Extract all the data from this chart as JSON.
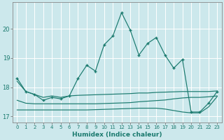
{
  "xlabel": "Humidex (Indice chaleur)",
  "background_color": "#cce8ec",
  "grid_color": "#ffffff",
  "line_color": "#1a7a6e",
  "xlim": [
    -0.5,
    23.5
  ],
  "ylim": [
    16.8,
    20.9
  ],
  "yticks": [
    17,
    18,
    19,
    20
  ],
  "xticks": [
    0,
    1,
    2,
    3,
    4,
    5,
    6,
    7,
    8,
    9,
    10,
    11,
    12,
    13,
    14,
    15,
    16,
    17,
    18,
    19,
    20,
    21,
    22,
    23
  ],
  "series": {
    "main": [
      18.3,
      17.85,
      17.75,
      17.55,
      17.65,
      17.6,
      17.7,
      18.3,
      18.75,
      18.55,
      19.45,
      19.75,
      20.55,
      19.95,
      19.1,
      19.5,
      19.7,
      19.1,
      18.65,
      18.95,
      17.15,
      17.15,
      17.45,
      17.85
    ],
    "upper": [
      18.2,
      17.85,
      17.75,
      17.65,
      17.7,
      17.65,
      17.7,
      17.72,
      17.73,
      17.74,
      17.75,
      17.76,
      17.77,
      17.78,
      17.8,
      17.8,
      17.82,
      17.83,
      17.84,
      17.85,
      17.85,
      17.85,
      17.85,
      17.87
    ],
    "middle": [
      17.55,
      17.45,
      17.43,
      17.43,
      17.43,
      17.43,
      17.43,
      17.43,
      17.43,
      17.43,
      17.44,
      17.45,
      17.46,
      17.47,
      17.5,
      17.52,
      17.54,
      17.56,
      17.6,
      17.63,
      17.65,
      17.65,
      17.67,
      17.7
    ],
    "lower": [
      17.22,
      17.22,
      17.22,
      17.22,
      17.22,
      17.22,
      17.22,
      17.22,
      17.22,
      17.23,
      17.24,
      17.25,
      17.26,
      17.27,
      17.28,
      17.28,
      17.28,
      17.25,
      17.2,
      17.15,
      17.12,
      17.12,
      17.32,
      17.68
    ]
  }
}
